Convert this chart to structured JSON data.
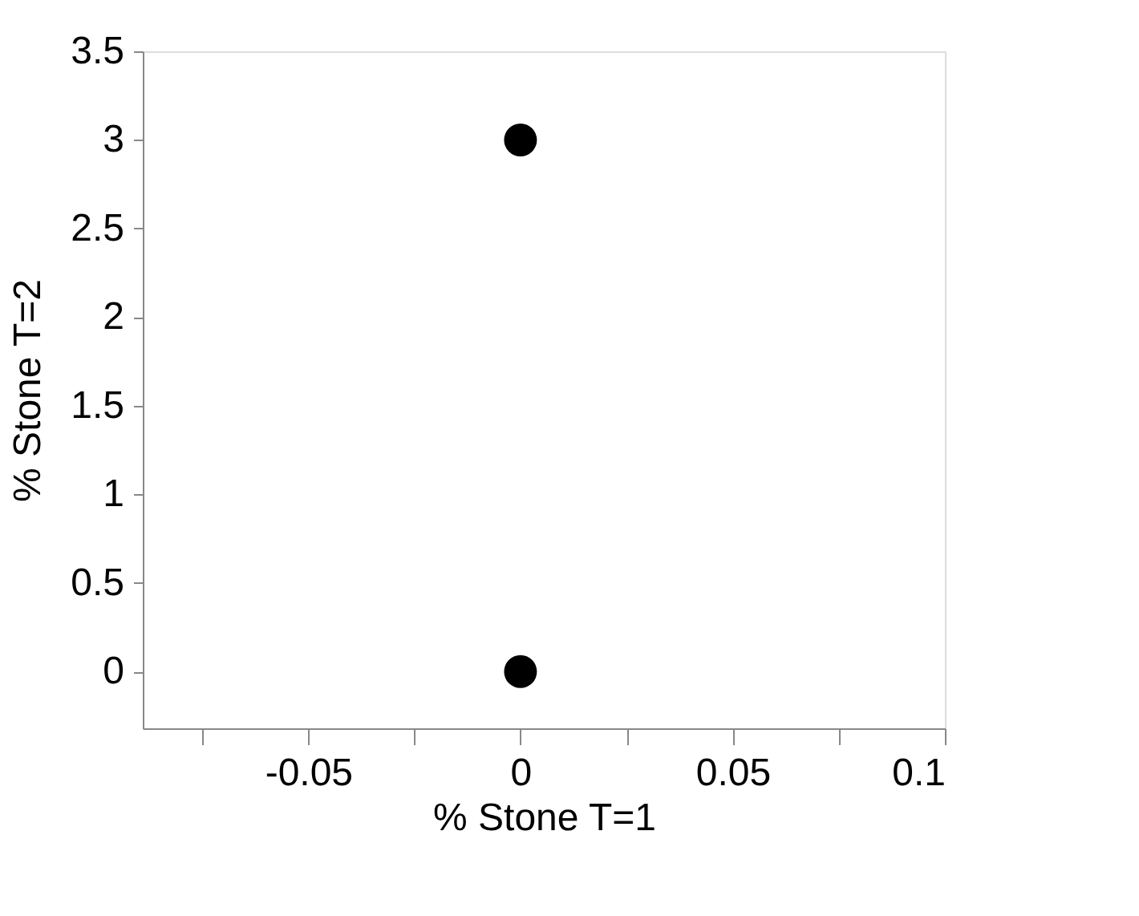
{
  "chart_data": {
    "type": "scatter",
    "xlabel": "% Stone T=1",
    "ylabel": "% Stone T=2",
    "x": [
      0,
      0
    ],
    "series": [
      {
        "color": "#000000",
        "values": [
          3,
          0
        ]
      }
    ],
    "marker": "circle",
    "xlim": [
      -0.089,
      0.1
    ],
    "xticks": [
      {
        "value": -0.075,
        "label": null
      },
      -0.05,
      {
        "value": -0.025,
        "label": null
      },
      0,
      {
        "value": 0.025,
        "label": null
      },
      0.05,
      {
        "value": 0.075,
        "label": null
      },
      0.1
    ],
    "ylim": [
      -0.32,
      3.5
    ],
    "yticks": [
      0,
      0.5,
      1,
      1.5,
      2,
      2.5,
      3,
      3.5
    ],
    "grid": false,
    "legend": false
  }
}
